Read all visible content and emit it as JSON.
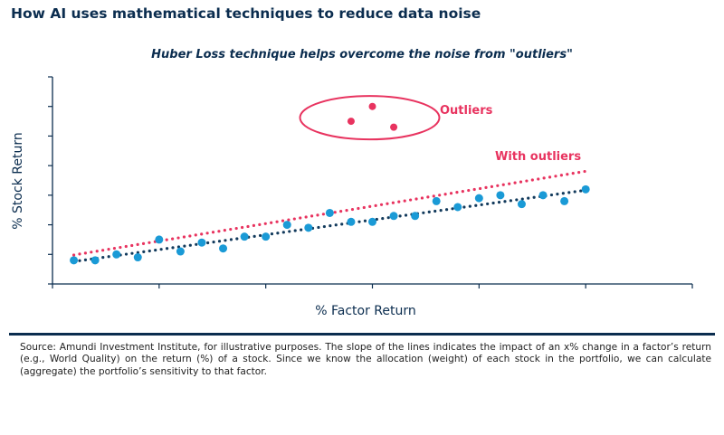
{
  "header": {
    "title": "How AI uses mathematical techniques to reduce data noise"
  },
  "chart_data": {
    "type": "scatter",
    "title": "Huber Loss technique helps overcome the noise from \"outliers\"",
    "xlabel": "% Factor Return",
    "ylabel": "% Stock Return",
    "xlim": [
      0,
      6
    ],
    "ylim": [
      0,
      7
    ],
    "x_ticks_labeled": false,
    "y_ticks_labeled": false,
    "grid": false,
    "series": [
      {
        "color": "#1a9ad6",
        "x": [
          0.2,
          0.4,
          0.6,
          0.8,
          1.0,
          1.2,
          1.4,
          1.6,
          1.8,
          2.0,
          2.2,
          2.4,
          2.6,
          2.8,
          3.0,
          3.2,
          3.4,
          3.6,
          3.8,
          4.0,
          4.2,
          4.4,
          4.6,
          4.8,
          5.0
        ],
        "y": [
          0.8,
          0.8,
          1.0,
          0.9,
          1.5,
          1.1,
          1.4,
          1.2,
          1.6,
          1.6,
          2.0,
          1.9,
          2.4,
          2.1,
          2.1,
          2.3,
          2.3,
          2.8,
          2.6,
          2.9,
          3.0,
          2.7,
          3.0,
          2.8,
          3.2
        ]
      },
      {
        "name": "Outliers",
        "color": "#e8335f",
        "x": [
          2.8,
          3.0,
          3.2
        ],
        "y": [
          5.5,
          6.0,
          5.3
        ]
      }
    ],
    "trendlines": [
      {
        "color": "#123a5c",
        "style": "dotted",
        "x": [
          0.2,
          5.0
        ],
        "y": [
          0.76,
          3.17
        ]
      },
      {
        "name": "With outliers",
        "color": "#e8335f",
        "style": "dotted",
        "x": [
          0.2,
          5.0
        ],
        "y": [
          0.98,
          3.81
        ]
      }
    ],
    "annotations": {
      "outliers_label": "Outliers",
      "with_outliers_label": "With outliers"
    }
  },
  "footer": {
    "source": "Source: Amundi Investment Institute, for illustrative purposes. The slope of the lines indicates the impact of an x% change in a factor’s return (e.g., World Quality) on the return (%) of a stock. Since we know the allocation (weight) of each stock in the portfolio, we can calculate (aggregate) the portfolio’s sensitivity to that factor."
  }
}
